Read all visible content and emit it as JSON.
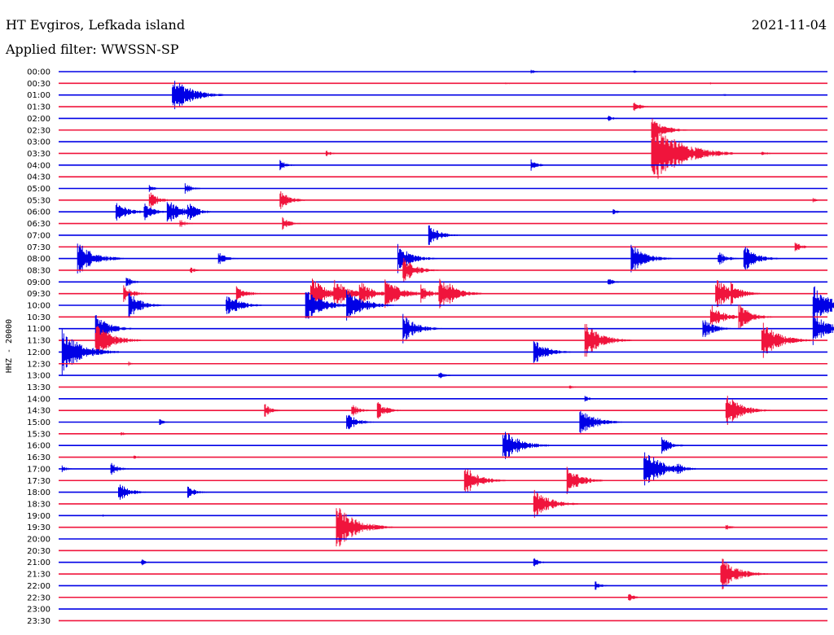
{
  "header": {
    "station": "HT Evgiros, Lefkada island",
    "date": "2021-11-04",
    "filter": "Applied filter: WWSSN-SP"
  },
  "colors": {
    "blue": "#0000e6",
    "red": "#f0143c"
  },
  "chart_data": {
    "type": "helicorder",
    "channel_label": "HHZ - 20000",
    "rows": [
      "00:00",
      "00:30",
      "01:00",
      "01:30",
      "02:00",
      "02:30",
      "03:00",
      "03:30",
      "04:00",
      "04:30",
      "05:00",
      "05:30",
      "06:00",
      "06:30",
      "07:00",
      "07:30",
      "08:00",
      "08:30",
      "09:00",
      "09:30",
      "10:00",
      "10:30",
      "11:00",
      "11:30",
      "12:00",
      "12:30",
      "13:00",
      "13:30",
      "14:00",
      "14:30",
      "15:00",
      "15:30",
      "16:00",
      "16:30",
      "17:00",
      "17:30",
      "18:00",
      "18:30",
      "19:00",
      "19:30",
      "20:00",
      "20:30",
      "21:00",
      "21:30",
      "22:00",
      "22:30",
      "23:00",
      "23:30"
    ],
    "row_colors": [
      "blue",
      "red"
    ],
    "minutes_per_row": 30,
    "events": [
      {
        "row": 0,
        "min": 18.5,
        "amp": 0.2
      },
      {
        "row": 0,
        "min": 22.5,
        "amp": 0.15
      },
      {
        "row": 1,
        "min": 17.5,
        "amp": 0.15
      },
      {
        "row": 1,
        "min": 25.5,
        "amp": 0.1
      },
      {
        "row": 2,
        "min": 4.5,
        "amp": 1.8
      },
      {
        "row": 2,
        "min": 26,
        "amp": 0.15
      },
      {
        "row": 3,
        "min": 22.5,
        "amp": 0.5
      },
      {
        "row": 4,
        "min": 21.5,
        "amp": 0.3
      },
      {
        "row": 5,
        "min": 23.2,
        "amp": 1.2
      },
      {
        "row": 5,
        "min": 23.8,
        "amp": 0.2
      },
      {
        "row": 7,
        "min": 10.5,
        "amp": 0.3
      },
      {
        "row": 7,
        "min": 23.2,
        "amp": 3.0
      },
      {
        "row": 7,
        "min": 27.5,
        "amp": 0.3
      },
      {
        "row": 8,
        "min": 8.7,
        "amp": 0.5
      },
      {
        "row": 8,
        "min": 18.5,
        "amp": 0.5
      },
      {
        "row": 10,
        "min": 3.6,
        "amp": 0.3
      },
      {
        "row": 10,
        "min": 5,
        "amp": 0.5
      },
      {
        "row": 11,
        "min": 3.6,
        "amp": 0.8
      },
      {
        "row": 11,
        "min": 8.7,
        "amp": 0.9
      },
      {
        "row": 11,
        "min": 29.5,
        "amp": 0.2
      },
      {
        "row": 12,
        "min": 2.3,
        "amp": 1.0
      },
      {
        "row": 12,
        "min": 3.4,
        "amp": 0.8
      },
      {
        "row": 12,
        "min": 4.3,
        "amp": 1.2
      },
      {
        "row": 12,
        "min": 5.1,
        "amp": 0.9
      },
      {
        "row": 12,
        "min": 21.7,
        "amp": 0.3
      },
      {
        "row": 13,
        "min": 4.8,
        "amp": 0.4
      },
      {
        "row": 13,
        "min": 8.8,
        "amp": 0.6
      },
      {
        "row": 14,
        "min": 14.5,
        "amp": 1.0
      },
      {
        "row": 15,
        "min": 28.8,
        "amp": 0.5
      },
      {
        "row": 16,
        "min": 0.8,
        "amp": 1.6
      },
      {
        "row": 16,
        "min": 6.3,
        "amp": 0.6
      },
      {
        "row": 16,
        "min": 13.3,
        "amp": 1.3
      },
      {
        "row": 16,
        "min": 22.4,
        "amp": 1.4
      },
      {
        "row": 16,
        "min": 25.8,
        "amp": 0.7
      },
      {
        "row": 16,
        "min": 26.8,
        "amp": 1.2
      },
      {
        "row": 17,
        "min": 5.2,
        "amp": 0.3
      },
      {
        "row": 17,
        "min": 13.5,
        "amp": 1.2
      },
      {
        "row": 18,
        "min": 2.7,
        "amp": 0.5
      },
      {
        "row": 18,
        "min": 21.5,
        "amp": 0.4
      },
      {
        "row": 19,
        "min": 2.6,
        "amp": 0.8
      },
      {
        "row": 19,
        "min": 7.0,
        "amp": 0.8
      },
      {
        "row": 19,
        "min": 9.9,
        "amp": 1.5
      },
      {
        "row": 19,
        "min": 10.8,
        "amp": 1.4
      },
      {
        "row": 19,
        "min": 11.8,
        "amp": 1.2
      },
      {
        "row": 19,
        "min": 12.8,
        "amp": 1.5
      },
      {
        "row": 19,
        "min": 14.2,
        "amp": 0.8
      },
      {
        "row": 19,
        "min": 14.9,
        "amp": 1.5
      },
      {
        "row": 19,
        "min": 15.3,
        "amp": 1.0
      },
      {
        "row": 19,
        "min": 25.7,
        "amp": 1.5
      },
      {
        "row": 19,
        "min": 26.3,
        "amp": 1.0
      },
      {
        "row": 20,
        "min": 2.8,
        "amp": 1.2
      },
      {
        "row": 20,
        "min": 6.6,
        "amp": 1.2
      },
      {
        "row": 20,
        "min": 9.7,
        "amp": 1.6
      },
      {
        "row": 20,
        "min": 11.3,
        "amp": 1.6
      },
      {
        "row": 20,
        "min": 29.5,
        "amp": 1.8
      },
      {
        "row": 21,
        "min": 25.5,
        "amp": 1.2
      },
      {
        "row": 21,
        "min": 26.6,
        "amp": 1.2
      },
      {
        "row": 22,
        "min": 1.5,
        "amp": 1.3
      },
      {
        "row": 22,
        "min": 13.5,
        "amp": 1.3
      },
      {
        "row": 22,
        "min": 25.2,
        "amp": 1.0
      },
      {
        "row": 22,
        "min": 29.5,
        "amp": 1.5
      },
      {
        "row": 23,
        "min": 1.5,
        "amp": 1.6
      },
      {
        "row": 23,
        "min": 20.6,
        "amp": 1.6
      },
      {
        "row": 23,
        "min": 27.5,
        "amp": 1.7
      },
      {
        "row": 24,
        "min": 0.2,
        "amp": 2.0
      },
      {
        "row": 24,
        "min": 18.6,
        "amp": 1.2
      },
      {
        "row": 25,
        "min": 2.8,
        "amp": 0.2
      },
      {
        "row": 26,
        "min": 14.9,
        "amp": 0.4
      },
      {
        "row": 27,
        "min": 20.0,
        "amp": 0.2
      },
      {
        "row": 28,
        "min": 20.6,
        "amp": 0.3
      },
      {
        "row": 29,
        "min": 8.1,
        "amp": 0.6
      },
      {
        "row": 29,
        "min": 11.5,
        "amp": 0.6
      },
      {
        "row": 29,
        "min": 12.5,
        "amp": 0.8
      },
      {
        "row": 29,
        "min": 26.1,
        "amp": 1.5
      },
      {
        "row": 30,
        "min": 4.0,
        "amp": 0.3
      },
      {
        "row": 30,
        "min": 11.3,
        "amp": 0.9
      },
      {
        "row": 30,
        "min": 20.4,
        "amp": 1.4
      },
      {
        "row": 31,
        "min": 2.5,
        "amp": 0.2
      },
      {
        "row": 32,
        "min": 17.4,
        "amp": 1.6
      },
      {
        "row": 32,
        "min": 23.6,
        "amp": 0.8
      },
      {
        "row": 33,
        "min": 3.0,
        "amp": 0.2
      },
      {
        "row": 34,
        "min": 0.2,
        "amp": 0.3
      },
      {
        "row": 34,
        "min": 2.1,
        "amp": 0.6
      },
      {
        "row": 34,
        "min": 22.9,
        "amp": 1.8
      },
      {
        "row": 34,
        "min": 24.2,
        "amp": 0.6
      },
      {
        "row": 35,
        "min": 15.9,
        "amp": 1.4
      },
      {
        "row": 35,
        "min": 19.9,
        "amp": 1.3
      },
      {
        "row": 36,
        "min": 2.4,
        "amp": 0.9
      },
      {
        "row": 36,
        "min": 5.1,
        "amp": 0.6
      },
      {
        "row": 37,
        "min": 18.6,
        "amp": 1.5
      },
      {
        "row": 38,
        "min": 1.8,
        "amp": 0.1
      },
      {
        "row": 39,
        "min": 10.9,
        "amp": 2.0
      },
      {
        "row": 39,
        "min": 26.1,
        "amp": 0.3
      },
      {
        "row": 42,
        "min": 3.3,
        "amp": 0.3
      },
      {
        "row": 42,
        "min": 18.6,
        "amp": 0.4
      },
      {
        "row": 43,
        "min": 25.9,
        "amp": 1.6
      },
      {
        "row": 44,
        "min": 21.0,
        "amp": 0.4
      },
      {
        "row": 45,
        "min": 22.3,
        "amp": 0.4
      }
    ]
  }
}
